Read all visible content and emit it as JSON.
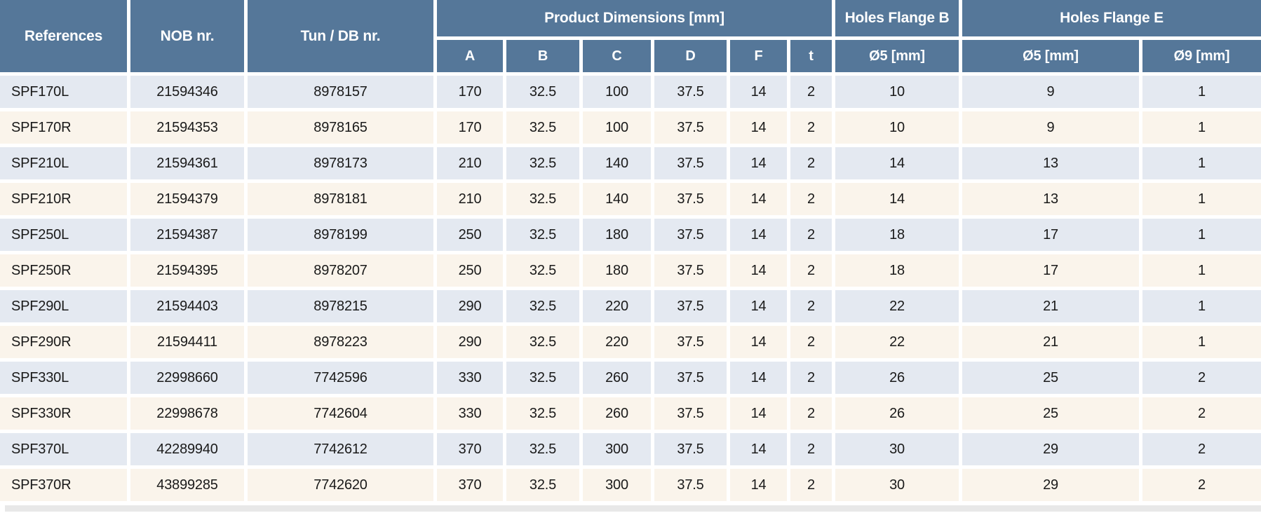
{
  "table": {
    "header": {
      "references": "References",
      "nob_nr": "NOB nr.",
      "tun_db_nr": "Tun / DB nr.",
      "product_dimensions": "Product Dimensions [mm]",
      "holes_flange_b": "Holes Flange B",
      "holes_flange_e": "Holes Flange E",
      "dims": [
        "A",
        "B",
        "C",
        "D",
        "F",
        "t"
      ],
      "flange_b_sub": [
        "Ø5 [mm]"
      ],
      "flange_e_sub": [
        "Ø5 [mm]",
        "Ø9 [mm]"
      ]
    },
    "column_keys": [
      "references",
      "nob-nr",
      "tun-db-nr",
      "dim-a",
      "dim-b",
      "dim-c",
      "dim-d",
      "dim-f",
      "dim-t",
      "flange-b-d5",
      "flange-e-d5",
      "flange-e-d9"
    ],
    "rows": [
      [
        "SPF170L",
        "21594346",
        "8978157",
        "170",
        "32.5",
        "100",
        "37.5",
        "14",
        "2",
        "10",
        "9",
        "1"
      ],
      [
        "SPF170R",
        "21594353",
        "8978165",
        "170",
        "32.5",
        "100",
        "37.5",
        "14",
        "2",
        "10",
        "9",
        "1"
      ],
      [
        "SPF210L",
        "21594361",
        "8978173",
        "210",
        "32.5",
        "140",
        "37.5",
        "14",
        "2",
        "14",
        "13",
        "1"
      ],
      [
        "SPF210R",
        "21594379",
        "8978181",
        "210",
        "32.5",
        "140",
        "37.5",
        "14",
        "2",
        "14",
        "13",
        "1"
      ],
      [
        "SPF250L",
        "21594387",
        "8978199",
        "250",
        "32.5",
        "180",
        "37.5",
        "14",
        "2",
        "18",
        "17",
        "1"
      ],
      [
        "SPF250R",
        "21594395",
        "8978207",
        "250",
        "32.5",
        "180",
        "37.5",
        "14",
        "2",
        "18",
        "17",
        "1"
      ],
      [
        "SPF290L",
        "21594403",
        "8978215",
        "290",
        "32.5",
        "220",
        "37.5",
        "14",
        "2",
        "22",
        "21",
        "1"
      ],
      [
        "SPF290R",
        "21594411",
        "8978223",
        "290",
        "32.5",
        "220",
        "37.5",
        "14",
        "2",
        "22",
        "21",
        "1"
      ],
      [
        "SPF330L",
        "22998660",
        "7742596",
        "330",
        "32.5",
        "260",
        "37.5",
        "14",
        "2",
        "26",
        "25",
        "2"
      ],
      [
        "SPF330R",
        "22998678",
        "7742604",
        "330",
        "32.5",
        "260",
        "37.5",
        "14",
        "2",
        "26",
        "25",
        "2"
      ],
      [
        "SPF370L",
        "42289940",
        "7742612",
        "370",
        "32.5",
        "300",
        "37.5",
        "14",
        "2",
        "30",
        "29",
        "2"
      ],
      [
        "SPF370R",
        "43899285",
        "7742620",
        "370",
        "32.5",
        "300",
        "37.5",
        "14",
        "2",
        "30",
        "29",
        "2"
      ]
    ]
  },
  "colors": {
    "header_bg": "#557799",
    "row_alt_blue": "#E4E9F1",
    "row_alt_cream": "#FAF4EB",
    "footer_strip": "#E8E8E8",
    "cell_text": "#1A1A1A"
  }
}
